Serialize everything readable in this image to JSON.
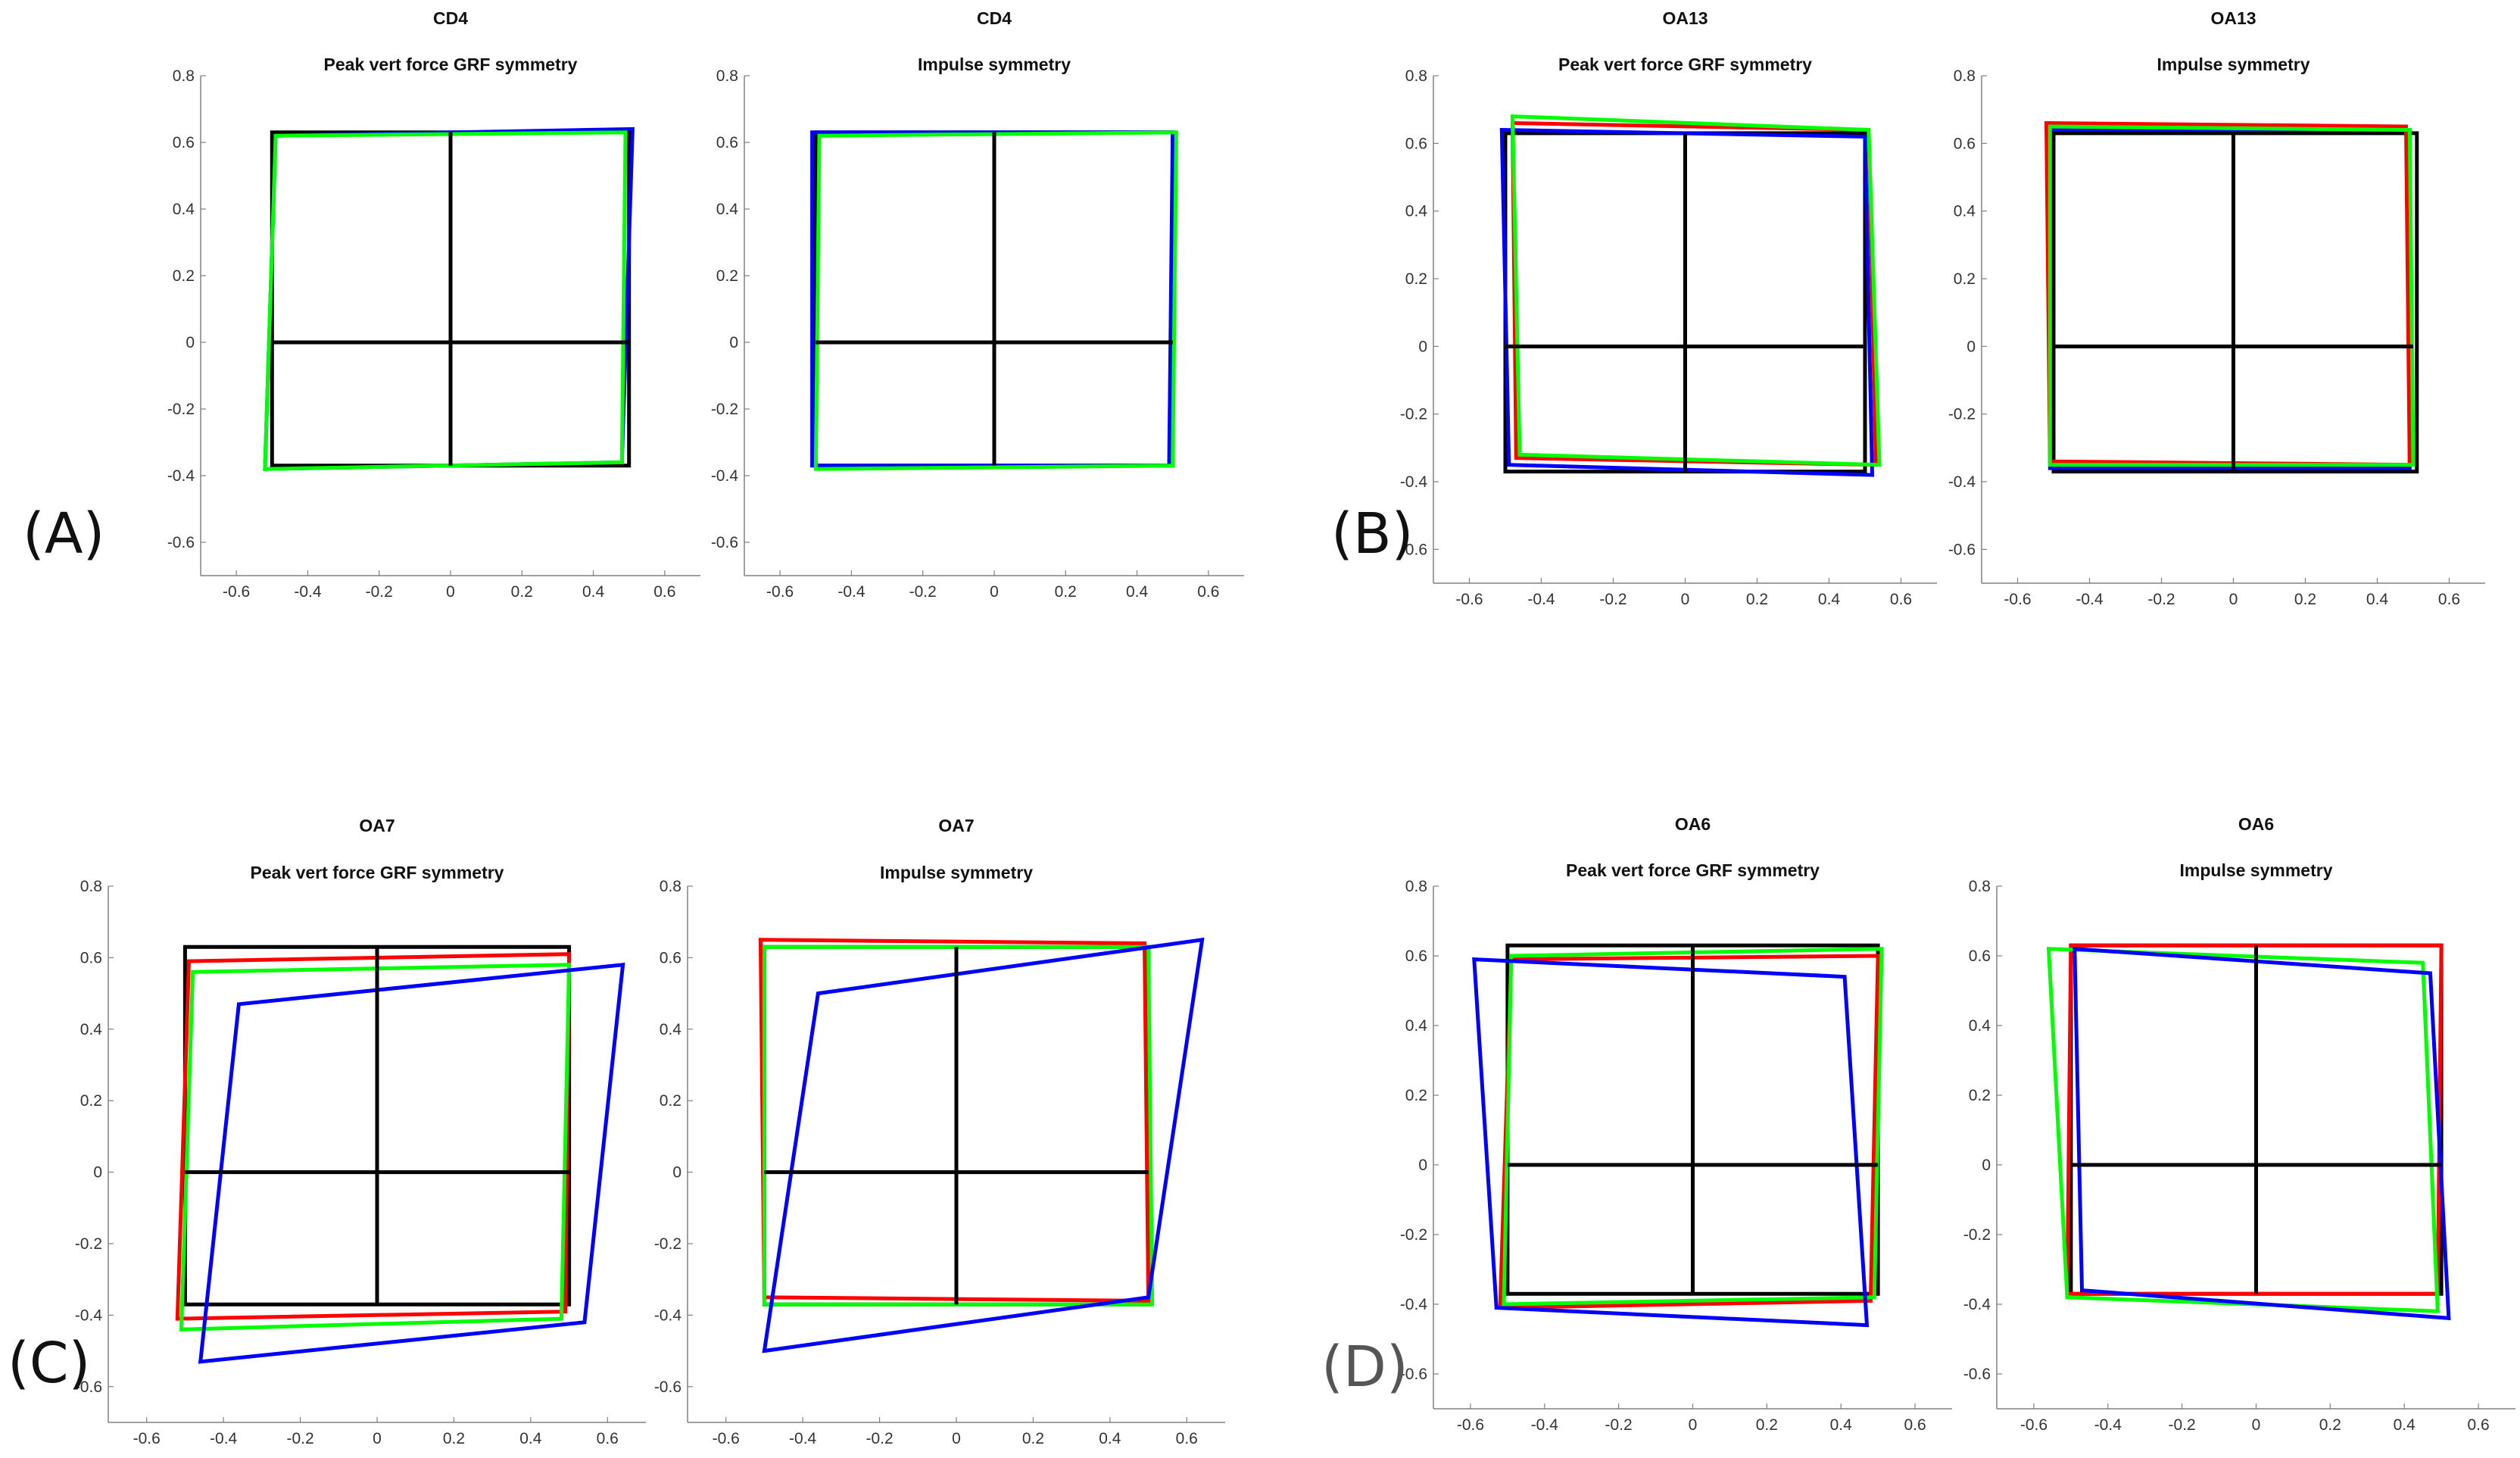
{
  "panel_labels": [
    "(A)",
    "(B)",
    "(C)",
    "(D)"
  ],
  "colors": {
    "black": "#000000",
    "red": "#ff0000",
    "blue": "#0000ff",
    "green": "#00ff00",
    "axis": "#808080"
  },
  "chart_data": [
    {
      "type": "line",
      "title": "CD4",
      "subtitle": "Peak vert force GRF symmetry",
      "xlabel": "",
      "ylabel": "",
      "xlim": [
        -0.7,
        0.7
      ],
      "ylim": [
        -0.7,
        0.8
      ],
      "xticks": [
        -0.6,
        -0.4,
        -0.2,
        0,
        0.2,
        0.4,
        0.6
      ],
      "yticks": [
        -0.6,
        -0.4,
        -0.2,
        0,
        0.2,
        0.4,
        0.6,
        0.8
      ],
      "grid": false,
      "series": [
        {
          "color": "black",
          "points": [
            [
              -0.5,
              0.63
            ],
            [
              0.5,
              0.63
            ],
            [
              0.5,
              -0.37
            ],
            [
              -0.5,
              -0.37
            ]
          ]
        },
        {
          "color": "blue",
          "points": [
            [
              -0.49,
              0.62
            ],
            [
              0.51,
              0.64
            ],
            [
              0.48,
              -0.36
            ],
            [
              -0.52,
              -0.38
            ]
          ]
        },
        {
          "color": "green",
          "points": [
            [
              -0.49,
              0.62
            ],
            [
              0.49,
              0.63
            ],
            [
              0.48,
              -0.36
            ],
            [
              -0.52,
              -0.38
            ]
          ]
        }
      ],
      "cross": {
        "x": [
          -0.5,
          0.5
        ],
        "y": [
          -0.37,
          0.63
        ],
        "hy": 0,
        "vx": 0
      }
    },
    {
      "type": "line",
      "title": "CD4",
      "subtitle": "Impulse symmetry",
      "xlabel": "",
      "ylabel": "",
      "xlim": [
        -0.7,
        0.7
      ],
      "ylim": [
        -0.7,
        0.8
      ],
      "xticks": [
        -0.6,
        -0.4,
        -0.2,
        0,
        0.2,
        0.4,
        0.6
      ],
      "yticks": [
        -0.6,
        -0.4,
        -0.2,
        0,
        0.2,
        0.4,
        0.6,
        0.8
      ],
      "grid": false,
      "series": [
        {
          "color": "black",
          "points": [
            [
              -0.5,
              0.63
            ],
            [
              0.5,
              0.63
            ],
            [
              0.5,
              -0.37
            ],
            [
              -0.5,
              -0.37
            ]
          ]
        },
        {
          "color": "blue",
          "points": [
            [
              -0.51,
              0.63
            ],
            [
              0.5,
              0.63
            ],
            [
              0.49,
              -0.37
            ],
            [
              -0.51,
              -0.37
            ]
          ]
        },
        {
          "color": "green",
          "points": [
            [
              -0.49,
              0.62
            ],
            [
              0.51,
              0.63
            ],
            [
              0.5,
              -0.37
            ],
            [
              -0.5,
              -0.38
            ]
          ]
        }
      ],
      "cross": {
        "x": [
          -0.5,
          0.5
        ],
        "y": [
          -0.37,
          0.63
        ],
        "hy": 0,
        "vx": 0
      }
    },
    {
      "type": "line",
      "title": "OA13",
      "subtitle": "Peak vert force GRF symmetry",
      "xlabel": "",
      "ylabel": "",
      "xlim": [
        -0.7,
        0.7
      ],
      "ylim": [
        -0.7,
        0.8
      ],
      "xticks": [
        -0.6,
        -0.4,
        -0.2,
        0,
        0.2,
        0.4,
        0.6
      ],
      "yticks": [
        -0.6,
        -0.4,
        -0.2,
        0,
        0.2,
        0.4,
        0.6,
        0.8
      ],
      "grid": false,
      "series": [
        {
          "color": "black",
          "points": [
            [
              -0.5,
              0.63
            ],
            [
              0.5,
              0.63
            ],
            [
              0.5,
              -0.37
            ],
            [
              -0.5,
              -0.37
            ]
          ]
        },
        {
          "color": "blue",
          "points": [
            [
              -0.51,
              0.64
            ],
            [
              0.5,
              0.62
            ],
            [
              0.52,
              -0.38
            ],
            [
              -0.49,
              -0.35
            ]
          ]
        },
        {
          "color": "red",
          "points": [
            [
              -0.48,
              0.66
            ],
            [
              0.51,
              0.64
            ],
            [
              0.53,
              -0.35
            ],
            [
              -0.47,
              -0.33
            ]
          ]
        },
        {
          "color": "green",
          "points": [
            [
              -0.48,
              0.68
            ],
            [
              0.51,
              0.64
            ],
            [
              0.54,
              -0.35
            ],
            [
              -0.46,
              -0.32
            ]
          ]
        }
      ],
      "cross": {
        "x": [
          -0.5,
          0.5
        ],
        "y": [
          -0.37,
          0.63
        ],
        "hy": 0,
        "vx": 0
      }
    },
    {
      "type": "line",
      "title": "OA13",
      "subtitle": "Impulse symmetry",
      "xlabel": "",
      "ylabel": "",
      "xlim": [
        -0.7,
        0.7
      ],
      "ylim": [
        -0.7,
        0.8
      ],
      "xticks": [
        -0.6,
        -0.4,
        -0.2,
        0,
        0.2,
        0.4,
        0.6
      ],
      "yticks": [
        -0.6,
        -0.4,
        -0.2,
        0,
        0.2,
        0.4,
        0.6,
        0.8
      ],
      "grid": false,
      "series": [
        {
          "color": "black",
          "points": [
            [
              -0.5,
              0.63
            ],
            [
              0.51,
              0.63
            ],
            [
              0.51,
              -0.37
            ],
            [
              -0.5,
              -0.37
            ]
          ]
        },
        {
          "color": "blue",
          "points": [
            [
              -0.51,
              0.64
            ],
            [
              0.49,
              0.64
            ],
            [
              0.49,
              -0.36
            ],
            [
              -0.51,
              -0.36
            ]
          ]
        },
        {
          "color": "red",
          "points": [
            [
              -0.52,
              0.66
            ],
            [
              0.48,
              0.65
            ],
            [
              0.49,
              -0.35
            ],
            [
              -0.51,
              -0.34
            ]
          ]
        },
        {
          "color": "green",
          "points": [
            [
              -0.51,
              0.65
            ],
            [
              0.49,
              0.64
            ],
            [
              0.5,
              -0.35
            ],
            [
              -0.51,
              -0.35
            ]
          ]
        }
      ],
      "cross": {
        "x": [
          -0.5,
          0.5
        ],
        "y": [
          -0.37,
          0.63
        ],
        "hy": 0,
        "vx": 0
      }
    },
    {
      "type": "line",
      "title": "OA7",
      "subtitle": "Peak vert force GRF symmetry",
      "xlabel": "",
      "ylabel": "",
      "xlim": [
        -0.7,
        0.7
      ],
      "ylim": [
        -0.7,
        0.8
      ],
      "xticks": [
        -0.6,
        -0.4,
        -0.2,
        0,
        0.2,
        0.4,
        0.6
      ],
      "yticks": [
        -0.6,
        -0.4,
        -0.2,
        0,
        0.2,
        0.4,
        0.6,
        0.8
      ],
      "grid": false,
      "series": [
        {
          "color": "black",
          "points": [
            [
              -0.5,
              0.63
            ],
            [
              0.5,
              0.63
            ],
            [
              0.5,
              -0.37
            ],
            [
              -0.5,
              -0.37
            ]
          ]
        },
        {
          "color": "red",
          "points": [
            [
              -0.49,
              0.59
            ],
            [
              0.5,
              0.61
            ],
            [
              0.49,
              -0.39
            ],
            [
              -0.52,
              -0.41
            ]
          ]
        },
        {
          "color": "green",
          "points": [
            [
              -0.48,
              0.56
            ],
            [
              0.5,
              0.58
            ],
            [
              0.48,
              -0.41
            ],
            [
              -0.51,
              -0.44
            ]
          ]
        },
        {
          "color": "blue",
          "points": [
            [
              -0.36,
              0.47
            ],
            [
              0.64,
              0.58
            ],
            [
              0.54,
              -0.42
            ],
            [
              -0.46,
              -0.53
            ]
          ]
        }
      ],
      "cross": {
        "x": [
          -0.5,
          0.5
        ],
        "y": [
          -0.37,
          0.63
        ],
        "hy": 0,
        "vx": 0
      }
    },
    {
      "type": "line",
      "title": "OA7",
      "subtitle": "Impulse symmetry",
      "xlabel": "",
      "ylabel": "",
      "xlim": [
        -0.7,
        0.7
      ],
      "ylim": [
        -0.7,
        0.8
      ],
      "xticks": [
        -0.6,
        -0.4,
        -0.2,
        0,
        0.2,
        0.4,
        0.6
      ],
      "yticks": [
        -0.6,
        -0.4,
        -0.2,
        0,
        0.2,
        0.4,
        0.6,
        0.8
      ],
      "grid": false,
      "series": [
        {
          "color": "black",
          "points": [
            [
              -0.5,
              0.63
            ],
            [
              0.5,
              0.63
            ],
            [
              0.5,
              -0.37
            ],
            [
              -0.5,
              -0.37
            ]
          ]
        },
        {
          "color": "red",
          "points": [
            [
              -0.51,
              0.65
            ],
            [
              0.49,
              0.64
            ],
            [
              0.5,
              -0.36
            ],
            [
              -0.5,
              -0.35
            ]
          ]
        },
        {
          "color": "green",
          "points": [
            [
              -0.5,
              0.63
            ],
            [
              0.5,
              0.63
            ],
            [
              0.51,
              -0.37
            ],
            [
              -0.5,
              -0.37
            ]
          ]
        },
        {
          "color": "blue",
          "points": [
            [
              -0.36,
              0.5
            ],
            [
              0.64,
              0.65
            ],
            [
              0.5,
              -0.35
            ],
            [
              -0.5,
              -0.5
            ]
          ]
        }
      ],
      "cross": {
        "x": [
          -0.5,
          0.5
        ],
        "y": [
          -0.37,
          0.63
        ],
        "hy": 0,
        "vx": 0
      }
    },
    {
      "type": "line",
      "title": "OA6",
      "subtitle": "Peak vert force GRF symmetry",
      "xlabel": "",
      "ylabel": "",
      "xlim": [
        -0.7,
        0.7
      ],
      "ylim": [
        -0.7,
        0.8
      ],
      "xticks": [
        -0.6,
        -0.4,
        -0.2,
        0,
        0.2,
        0.4,
        0.6
      ],
      "yticks": [
        -0.6,
        -0.4,
        -0.2,
        0,
        0.2,
        0.4,
        0.6,
        0.8
      ],
      "grid": false,
      "series": [
        {
          "color": "black",
          "points": [
            [
              -0.5,
              0.63
            ],
            [
              0.5,
              0.63
            ],
            [
              0.5,
              -0.37
            ],
            [
              -0.5,
              -0.37
            ]
          ]
        },
        {
          "color": "red",
          "points": [
            [
              -0.49,
              0.59
            ],
            [
              0.5,
              0.6
            ],
            [
              0.48,
              -0.39
            ],
            [
              -0.52,
              -0.41
            ]
          ]
        },
        {
          "color": "green",
          "points": [
            [
              -0.49,
              0.6
            ],
            [
              0.51,
              0.62
            ],
            [
              0.49,
              -0.38
            ],
            [
              -0.51,
              -0.4
            ]
          ]
        },
        {
          "color": "blue",
          "points": [
            [
              -0.59,
              0.59
            ],
            [
              0.41,
              0.54
            ],
            [
              0.47,
              -0.46
            ],
            [
              -0.53,
              -0.41
            ]
          ]
        }
      ],
      "cross": {
        "x": [
          -0.5,
          0.5
        ],
        "y": [
          -0.37,
          0.63
        ],
        "hy": 0,
        "vx": 0
      }
    },
    {
      "type": "line",
      "title": "OA6",
      "subtitle": "Impulse symmetry",
      "xlabel": "",
      "ylabel": "",
      "xlim": [
        -0.7,
        0.7
      ],
      "ylim": [
        -0.7,
        0.8
      ],
      "xticks": [
        -0.6,
        -0.4,
        -0.2,
        0,
        0.2,
        0.4,
        0.6
      ],
      "yticks": [
        -0.6,
        -0.4,
        -0.2,
        0,
        0.2,
        0.4,
        0.6,
        0.8
      ],
      "grid": false,
      "series": [
        {
          "color": "black",
          "points": [
            [
              -0.5,
              0.63
            ],
            [
              0.5,
              0.63
            ],
            [
              0.5,
              -0.37
            ],
            [
              -0.5,
              -0.37
            ]
          ]
        },
        {
          "color": "red",
          "points": [
            [
              -0.5,
              0.63
            ],
            [
              0.5,
              0.63
            ],
            [
              0.49,
              -0.37
            ],
            [
              -0.51,
              -0.37
            ]
          ]
        },
        {
          "color": "green",
          "points": [
            [
              -0.56,
              0.62
            ],
            [
              0.45,
              0.58
            ],
            [
              0.49,
              -0.42
            ],
            [
              -0.51,
              -0.38
            ]
          ]
        },
        {
          "color": "blue",
          "points": [
            [
              -0.49,
              0.62
            ],
            [
              0.47,
              0.55
            ],
            [
              0.52,
              -0.44
            ],
            [
              -0.47,
              -0.36
            ]
          ]
        }
      ],
      "cross": {
        "x": [
          -0.5,
          0.5
        ],
        "y": [
          -0.37,
          0.63
        ],
        "hy": 0,
        "vx": 0
      }
    }
  ]
}
